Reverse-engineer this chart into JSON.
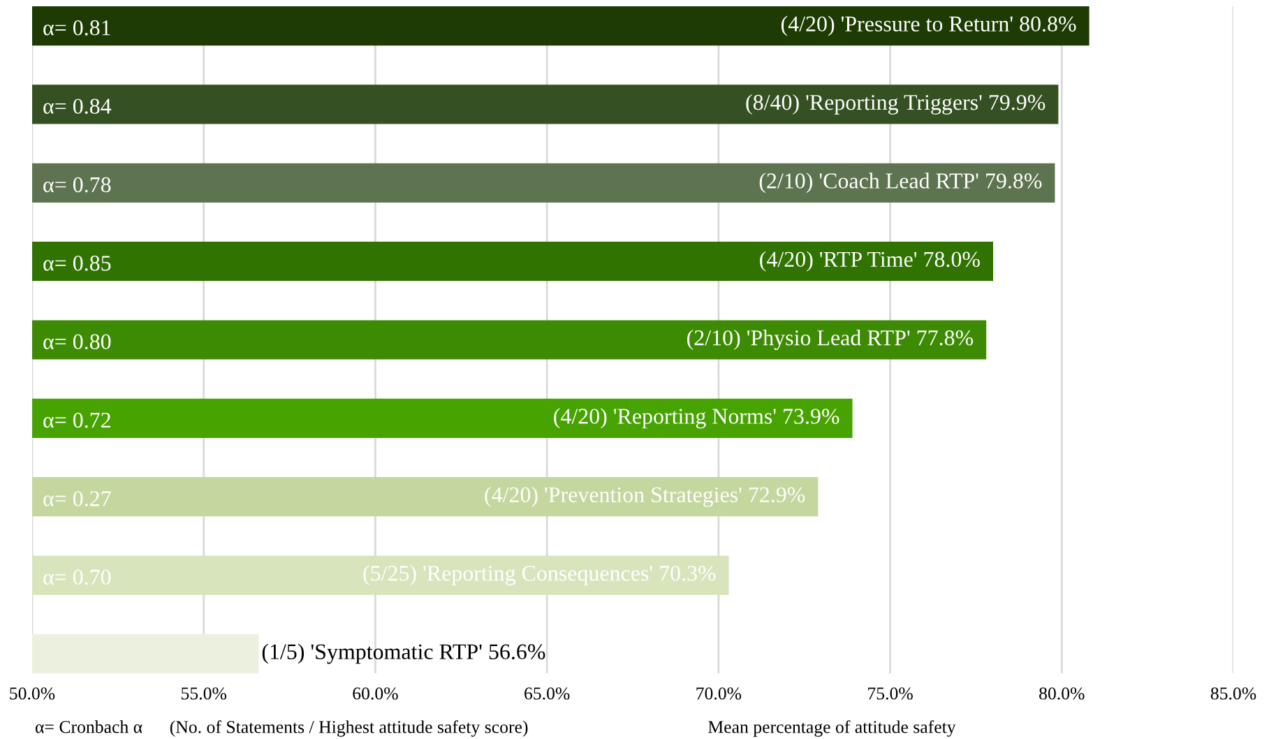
{
  "chart_data": {
    "type": "bar",
    "orientation": "horizontal",
    "categories": [
      "(4/20) 'Pressure to Return'",
      "(8/40) 'Reporting Triggers'",
      "(2/10) 'Coach Lead RTP'",
      "(4/20) 'RTP Time'",
      "(2/10) 'Physio Lead RTP'",
      "(4/20) 'Reporting Norms'",
      "(4/20) 'Prevention Strategies'",
      "(5/25) 'Reporting Consequences'",
      "(1/5) 'Symptomatic RTP'"
    ],
    "values": [
      80.8,
      79.9,
      79.8,
      78.0,
      77.8,
      73.9,
      72.9,
      70.3,
      56.6
    ],
    "value_labels": [
      "80.8%",
      "79.9%",
      "79.8%",
      "78.0%",
      "77.8%",
      "73.9%",
      "72.9%",
      "70.3%",
      "56.6%"
    ],
    "colors": [
      "#1d3b02",
      "#355022",
      "#5e7350",
      "#307300",
      "#3d8b03",
      "#47a300",
      "#c4d79e",
      "#d8e4bc",
      "#ebf1de"
    ],
    "xlim": [
      50,
      85
    ],
    "xticks": [
      {
        "value": 50,
        "label": "50.0%"
      },
      {
        "value": 55,
        "label": "55.0%"
      },
      {
        "value": 60,
        "label": "60.0%"
      },
      {
        "value": 65,
        "label": "65.0%"
      },
      {
        "value": 70,
        "label": "70.0%"
      },
      {
        "value": 75,
        "label": "75.0%"
      },
      {
        "value": 80,
        "label": "80.0%"
      },
      {
        "value": 85,
        "label": "85.0%"
      }
    ],
    "xlabel": "Mean percentage of attitude safety",
    "annotations": [
      "α= 0.81",
      "α= 0.84",
      "α= 0.78",
      "α= 0.85",
      "α= 0.80",
      "α= 0.72",
      "α= 0.27",
      "α= 0.70",
      "α= Cronbach α",
      "(No. of Statements / Highest attitude safety score)"
    ],
    "grid": "x",
    "tick_labels": "x"
  }
}
